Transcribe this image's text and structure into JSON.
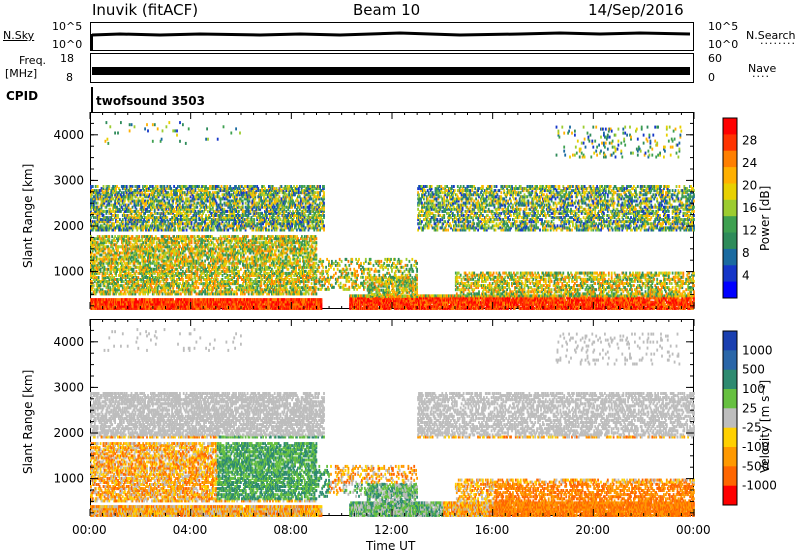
{
  "header": {
    "station": "Inuvik (fitACF)",
    "beam": "Beam 10",
    "date": "14/Sep/2016"
  },
  "panels": {
    "nsky_label": "N.Sky",
    "nsky_ticks": [
      "10^5",
      "10^0"
    ],
    "nsearch_label": "N.Search",
    "nsearch_ticks": [
      "10^5",
      "10^0"
    ],
    "freq_label_1": "Freq.",
    "freq_label_2": "[MHz]",
    "freq_ticks": [
      "18",
      "8"
    ],
    "nave_label": "Nave",
    "nave_ticks": [
      "60",
      "0"
    ],
    "cpid_label": "CPID",
    "cpid_value": "twofsound 3503"
  },
  "power_colorbar": {
    "label": "Power [dB]",
    "ticks": [
      "28",
      "24",
      "20",
      "16",
      "12",
      "8",
      "4"
    ],
    "colors": [
      "#ff0000",
      "#ff3300",
      "#ff7f00",
      "#ffb000",
      "#e8d000",
      "#9ccc30",
      "#3ea050",
      "#2e8b5a",
      "#1a6aa0",
      "#1536c8",
      "#0000ff"
    ]
  },
  "velocity_colorbar": {
    "label": "Velocity [m s⁻¹]",
    "ticks": [
      "1000",
      "500",
      "100",
      "25",
      "-25",
      "-100",
      "-500",
      "-1000"
    ],
    "colors": [
      "#1a3fb0",
      "#2a66a8",
      "#2e8a70",
      "#66c040",
      "#bdbdbd",
      "#ffd000",
      "#ff9900",
      "#ff6600",
      "#ff0000"
    ]
  },
  "chart_data": {
    "type": "heatmap",
    "title": "Beam 10",
    "xlabel": "Time UT",
    "ylabel": "Slant Range [km]",
    "x_ticks": [
      "00:00",
      "04:00",
      "08:00",
      "12:00",
      "16:00",
      "20:00",
      "00:00"
    ],
    "y_ticks": [
      1000,
      2000,
      3000,
      4000
    ],
    "ylim": [
      180,
      4500
    ],
    "xlim_hours": [
      0,
      24
    ],
    "panels": [
      {
        "name": "Power",
        "unit": "dB",
        "range": [
          0,
          30
        ]
      },
      {
        "name": "Velocity",
        "unit": "m s-1",
        "range": [
          -1000,
          1000
        ]
      }
    ]
  }
}
